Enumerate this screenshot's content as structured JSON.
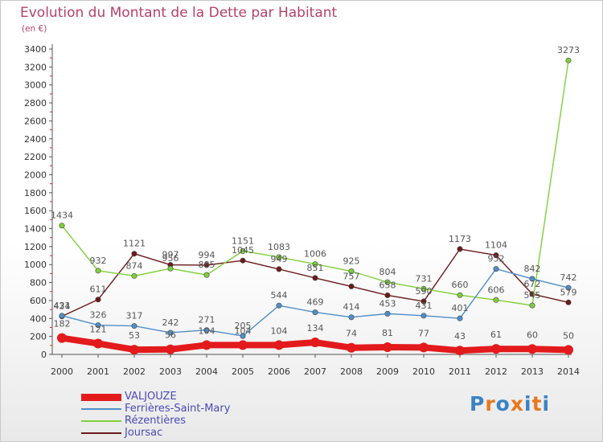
{
  "title": "Evolution du Montant de la Dette par Habitant",
  "subtitle": "(en €)",
  "logo": {
    "text": "Proxiti",
    "letters": [
      "P",
      "r",
      "o",
      "x",
      "i",
      "t",
      "i"
    ],
    "colors": [
      "#3b82c4",
      "#e8781e",
      "#3b82c4",
      "#e8781e",
      "#3b82c4",
      "#e8781e",
      "#3b82c4"
    ]
  },
  "chart_data": {
    "type": "line",
    "title": "Evolution du Montant de la Dette par Habitant",
    "subtitle": "(en €)",
    "x": [
      "2000",
      "2001",
      "2002",
      "2003",
      "2004",
      "2005",
      "2006",
      "2007",
      "2008",
      "2009",
      "2010",
      "2011",
      "2012",
      "2013",
      "2014"
    ],
    "ylim": [
      0,
      3400
    ],
    "yticks": [
      0,
      200,
      400,
      600,
      800,
      1000,
      1200,
      1400,
      1600,
      1800,
      2000,
      2200,
      2400,
      2600,
      2800,
      3000,
      3200,
      3400
    ],
    "grid": false,
    "legend": "bottom-left",
    "series": [
      {
        "name": "VALJOUZE",
        "color": "#e31a1c",
        "values": [
          182,
          121,
          53,
          56,
          104,
          104,
          104,
          134,
          74,
          81,
          77,
          43,
          61,
          60,
          50
        ]
      },
      {
        "name": "Ferrières-Saint-Mary",
        "color": "#4f8fc9",
        "values": [
          431,
          326,
          317,
          242,
          271,
          205,
          544,
          469,
          414,
          453,
          431,
          401,
          952,
          842,
          742
        ]
      },
      {
        "name": "Rézentières",
        "color": "#7ed03a",
        "values": [
          1434,
          932,
          874,
          956,
          885,
          1151,
          1083,
          1006,
          925,
          804,
          731,
          660,
          606,
          545,
          3273
        ]
      },
      {
        "name": "Joursac",
        "color": "#6b1a1a",
        "values": [
          424,
          611,
          1121,
          997,
          994,
          1045,
          949,
          851,
          757,
          658,
          590,
          1173,
          1104,
          672,
          579
        ]
      }
    ]
  }
}
